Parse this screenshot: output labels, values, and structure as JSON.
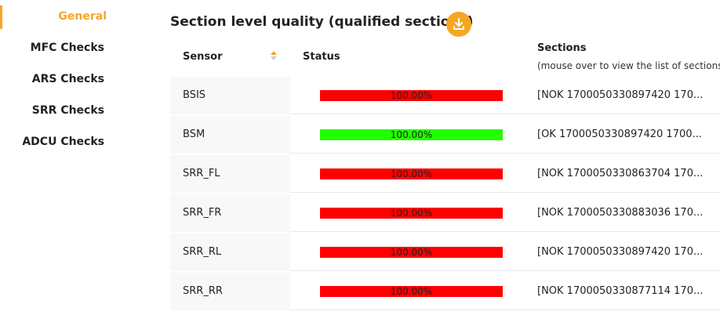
{
  "nav": {
    "items": [
      "General",
      "MFC Checks",
      "ARS Checks",
      "SRR Checks",
      "ADCU Checks"
    ],
    "active": "General"
  },
  "section": {
    "title": "Section level quality (qualified sections)"
  },
  "table": {
    "headers": {
      "sensor": "Sensor",
      "status": "Status",
      "sections": "Sections",
      "sections_hint": "(mouse over to view the list of sections)"
    },
    "rows": [
      {
        "sensor": "BSIS",
        "status": "100.00%",
        "status_color": "#ff0000",
        "sections": "[NOK 1700050330897420 170..."
      },
      {
        "sensor": "BSM",
        "status": "100.00%",
        "status_color": "#22ff00",
        "sections": "[OK 1700050330897420 1700..."
      },
      {
        "sensor": "SRR_FL",
        "status": "100.00%",
        "status_color": "#ff0000",
        "sections": "[NOK 1700050330863704 170..."
      },
      {
        "sensor": "SRR_FR",
        "status": "100.00%",
        "status_color": "#ff0000",
        "sections": "[NOK 1700050330883036 170..."
      },
      {
        "sensor": "SRR_RL",
        "status": "100.00%",
        "status_color": "#ff0000",
        "sections": "[NOK 1700050330897420 170..."
      },
      {
        "sensor": "SRR_RR",
        "status": "100.00%",
        "status_color": "#ff0000",
        "sections": "[NOK 1700050330877114 170..."
      }
    ]
  }
}
